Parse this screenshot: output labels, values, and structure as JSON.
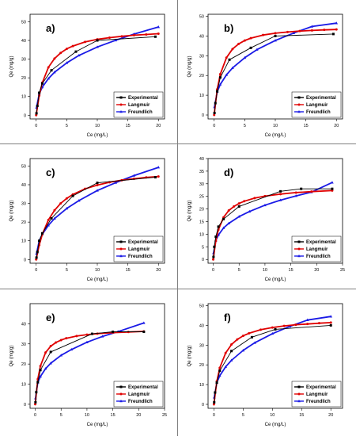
{
  "colors": {
    "Experimental": "#000000",
    "Langmuir": "#e00000",
    "Freundlich": "#1a1ae6"
  },
  "chart_data": [
    {
      "type": "line",
      "panel": "a)",
      "xlabel": "Ce (mg/L)",
      "ylabel": "Qe (mg/g)",
      "xlim": [
        -1,
        21
      ],
      "ylim": [
        -2,
        54
      ],
      "xticks": [
        0,
        5,
        10,
        15,
        20
      ],
      "yticks": [
        0,
        10,
        20,
        30,
        40,
        50
      ],
      "series": [
        {
          "name": "Experimental",
          "x": [
            0.05,
            0.2,
            0.5,
            1,
            2.5,
            6.5,
            10,
            19.5
          ],
          "y": [
            1,
            5,
            12,
            17,
            24,
            34,
            40,
            42
          ]
        },
        {
          "name": "Langmuir",
          "x": [
            0,
            0.5,
            1,
            2,
            3,
            4,
            5,
            6,
            8,
            10,
            12,
            14,
            16,
            18,
            20
          ],
          "y": [
            0,
            10.5,
            17.4,
            25.6,
            30.3,
            33.3,
            35.5,
            37,
            39.2,
            40.6,
            41.5,
            42.2,
            42.8,
            43.2,
            43.6
          ]
        },
        {
          "name": "Freundlich",
          "x": [
            0.05,
            0.5,
            1,
            2,
            3,
            5,
            7,
            10,
            13,
            16,
            20
          ],
          "y": [
            4,
            11.5,
            15,
            19.6,
            23,
            28,
            32,
            36.5,
            40.1,
            43.4,
            47.2
          ]
        }
      ]
    },
    {
      "type": "line",
      "panel": "b)",
      "xlabel": "Ce (mg/L)",
      "ylabel": "Qe (mg/g)",
      "xlim": [
        -1,
        21
      ],
      "ylim": [
        -2,
        51
      ],
      "xticks": [
        0,
        5,
        10,
        15,
        20
      ],
      "yticks": [
        0,
        10,
        20,
        30,
        40,
        50
      ],
      "series": [
        {
          "name": "Experimental",
          "x": [
            0.05,
            0.2,
            0.5,
            1,
            2.5,
            6,
            10,
            19.5
          ],
          "y": [
            1,
            6,
            12,
            19,
            28,
            34,
            40,
            41
          ]
        },
        {
          "name": "Langmuir",
          "x": [
            0,
            0.5,
            1,
            2,
            3,
            4,
            5,
            6,
            8,
            10,
            12,
            14,
            16,
            18,
            20
          ],
          "y": [
            0,
            13,
            20.7,
            29,
            33.4,
            36,
            37.7,
            38.9,
            40.5,
            41.4,
            42,
            42.5,
            42.8,
            43.1,
            43.3
          ]
        },
        {
          "name": "Freundlich",
          "x": [
            0.05,
            0.5,
            1,
            2,
            3,
            5,
            7,
            10,
            13,
            16,
            20
          ],
          "y": [
            4,
            11.8,
            15.5,
            20.3,
            23.8,
            29,
            33.1,
            37.7,
            41.5,
            44.8,
            46.5
          ]
        }
      ]
    },
    {
      "type": "line",
      "panel": "c)",
      "xlabel": "Ce (mg/L)",
      "ylabel": "Qe (mg/g)",
      "xlim": [
        -1,
        21
      ],
      "ylim": [
        -2,
        54
      ],
      "xticks": [
        0,
        5,
        10,
        15,
        20
      ],
      "yticks": [
        0,
        10,
        20,
        30,
        40,
        50
      ],
      "series": [
        {
          "name": "Experimental",
          "x": [
            0.05,
            0.2,
            0.5,
            1,
            2.5,
            6,
            10,
            19.5
          ],
          "y": [
            1,
            4,
            10,
            14,
            22,
            34,
            41,
            44
          ]
        },
        {
          "name": "Langmuir",
          "x": [
            0,
            0.5,
            1,
            2,
            3,
            4,
            5,
            6,
            8,
            10,
            12,
            14,
            16,
            18,
            20
          ],
          "y": [
            0,
            7.7,
            13.5,
            21.2,
            26.3,
            30,
            32.7,
            34.8,
            37.8,
            39.8,
            41.3,
            42.4,
            43.2,
            43.9,
            44.4
          ]
        },
        {
          "name": "Freundlich",
          "x": [
            0.05,
            0.5,
            1,
            2,
            3,
            5,
            7,
            10,
            13,
            16,
            20
          ],
          "y": [
            3,
            10,
            13.5,
            18.3,
            21.9,
            27.3,
            31.5,
            36.9,
            41.1,
            44.9,
            49.3
          ]
        }
      ]
    },
    {
      "type": "line",
      "panel": "d)",
      "xlabel": "Ce (mg/L)",
      "ylabel": "Qe (mg/g)",
      "xlim": [
        -1,
        25
      ],
      "ylim": [
        -1.5,
        40
      ],
      "xticks": [
        0,
        5,
        10,
        15,
        20,
        25
      ],
      "yticks": [
        0,
        5,
        10,
        15,
        20,
        25,
        30,
        35,
        40
      ],
      "series": [
        {
          "name": "Experimental",
          "x": [
            0.05,
            0.2,
            0.5,
            1,
            2,
            5,
            13,
            17,
            23
          ],
          "y": [
            1,
            5,
            9,
            13,
            16,
            21,
            27,
            28,
            28
          ]
        },
        {
          "name": "Langmuir",
          "x": [
            0,
            0.5,
            1,
            2,
            3,
            4,
            5,
            6,
            8,
            10,
            13,
            16,
            19,
            23
          ],
          "y": [
            0,
            7.4,
            11.8,
            16.7,
            19.4,
            21,
            22.2,
            23.1,
            24.3,
            25.1,
            25.9,
            26.5,
            26.9,
            27.3
          ]
        },
        {
          "name": "Freundlich",
          "x": [
            0.05,
            0.5,
            1,
            2,
            3,
            5,
            7,
            10,
            13,
            16,
            19,
            23
          ],
          "y": [
            2.5,
            7.5,
            9.7,
            12.5,
            14.3,
            17,
            19,
            21.5,
            23.5,
            25.2,
            26.7,
            30.5
          ]
        }
      ]
    },
    {
      "type": "line",
      "panel": "e)",
      "xlabel": "Ce (mg/L)",
      "ylabel": "Qe (mg/g)",
      "xlim": [
        -1,
        25
      ],
      "ylim": [
        -2,
        50
      ],
      "xticks": [
        0,
        5,
        10,
        15,
        20,
        25
      ],
      "yticks": [
        0,
        10,
        20,
        30,
        40
      ],
      "series": [
        {
          "name": "Experimental",
          "x": [
            0.05,
            0.2,
            0.5,
            1,
            3,
            11,
            15,
            21
          ],
          "y": [
            1,
            6,
            11,
            17,
            26,
            35,
            36,
            36
          ]
        },
        {
          "name": "Langmuir",
          "x": [
            0,
            0.5,
            1,
            2,
            3,
            4,
            5,
            6,
            8,
            10,
            12,
            15,
            18,
            21
          ],
          "y": [
            0,
            12.5,
            19,
            25.7,
            28.9,
            30.7,
            31.9,
            32.8,
            33.9,
            34.6,
            35.1,
            35.6,
            35.9,
            36.2
          ]
        },
        {
          "name": "Freundlich",
          "x": [
            0.05,
            0.5,
            1,
            2,
            3,
            5,
            7,
            10,
            13,
            16,
            21
          ],
          "y": [
            3,
            10.8,
            13.8,
            17.7,
            20.4,
            24.3,
            27.2,
            30.8,
            33.7,
            36.1,
            40.4
          ]
        }
      ]
    },
    {
      "type": "line",
      "panel": "f)",
      "xlabel": "Ce (mg/L)",
      "ylabel": "Qe (mg/g)",
      "xlim": [
        -1,
        22
      ],
      "ylim": [
        -2,
        51
      ],
      "xticks": [
        0,
        5,
        10,
        15,
        20
      ],
      "yticks": [
        0,
        10,
        20,
        30,
        40,
        50
      ],
      "series": [
        {
          "name": "Experimental",
          "x": [
            0.05,
            0.2,
            0.5,
            1,
            3,
            6.5,
            10.5,
            20
          ],
          "y": [
            1,
            6,
            11,
            17,
            27,
            34,
            38,
            40
          ]
        },
        {
          "name": "Langmuir",
          "x": [
            0,
            0.5,
            1,
            2,
            3,
            4,
            5,
            6,
            8,
            10,
            12,
            14,
            16,
            18,
            20
          ],
          "y": [
            0,
            11.7,
            18.5,
            26,
            30.3,
            32.9,
            34.7,
            36,
            37.8,
            38.9,
            39.7,
            40.3,
            40.7,
            41.1,
            41.4
          ]
        },
        {
          "name": "Freundlich",
          "x": [
            0.05,
            0.5,
            1,
            2,
            3,
            5,
            7,
            10,
            13,
            16,
            20
          ],
          "y": [
            3.5,
            11,
            14.5,
            19,
            22.3,
            27.3,
            31.2,
            35.8,
            39.5,
            42.7,
            44.5
          ]
        }
      ]
    }
  ]
}
